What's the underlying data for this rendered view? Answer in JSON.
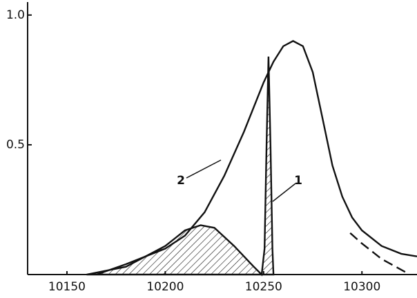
{
  "chart_data": {
    "type": "line",
    "xlim": [
      10130,
      10328
    ],
    "ylim": [
      0,
      1.05
    ],
    "xticks": [
      10150,
      10200,
      10250,
      10300
    ],
    "yticks": [
      0.5,
      {
        "value": 1,
        "label": "1.0"
      }
    ],
    "series": [
      {
        "label": "1",
        "color": "#111",
        "fill": "hatch",
        "dashed": false,
        "x": [
          10160,
          10180,
          10200,
          10210,
          10218,
          10225,
          10235,
          10245,
          10249,
          10250.5,
          10251.5,
          10252.5,
          10253.5,
          10254.5,
          10255
        ],
        "values": [
          0,
          0.03,
          0.11,
          0.17,
          0.19,
          0.18,
          0.11,
          0.03,
          0,
          0.1,
          0.5,
          0.84,
          0.5,
          0.1,
          0
        ]
      },
      {
        "label": "2",
        "color": "#111",
        "fill": "none",
        "dashed": false,
        "x": [
          10165,
          10180,
          10200,
          10210,
          10220,
          10230,
          10240,
          10250,
          10255,
          10260,
          10265,
          10270,
          10275,
          10280,
          10285,
          10290,
          10295,
          10300,
          10310,
          10320,
          10328
        ],
        "values": [
          0,
          0.04,
          0.1,
          0.15,
          0.24,
          0.38,
          0.55,
          0.74,
          0.82,
          0.88,
          0.9,
          0.88,
          0.78,
          0.6,
          0.42,
          0.3,
          0.22,
          0.17,
          0.11,
          0.08,
          0.07
        ]
      },
      {
        "color": "#111",
        "fill": "none",
        "dashed": true,
        "x": [
          10294,
          10300,
          10310,
          10322
        ],
        "values": [
          0.16,
          0.12,
          0.06,
          0.01
        ]
      }
    ]
  }
}
